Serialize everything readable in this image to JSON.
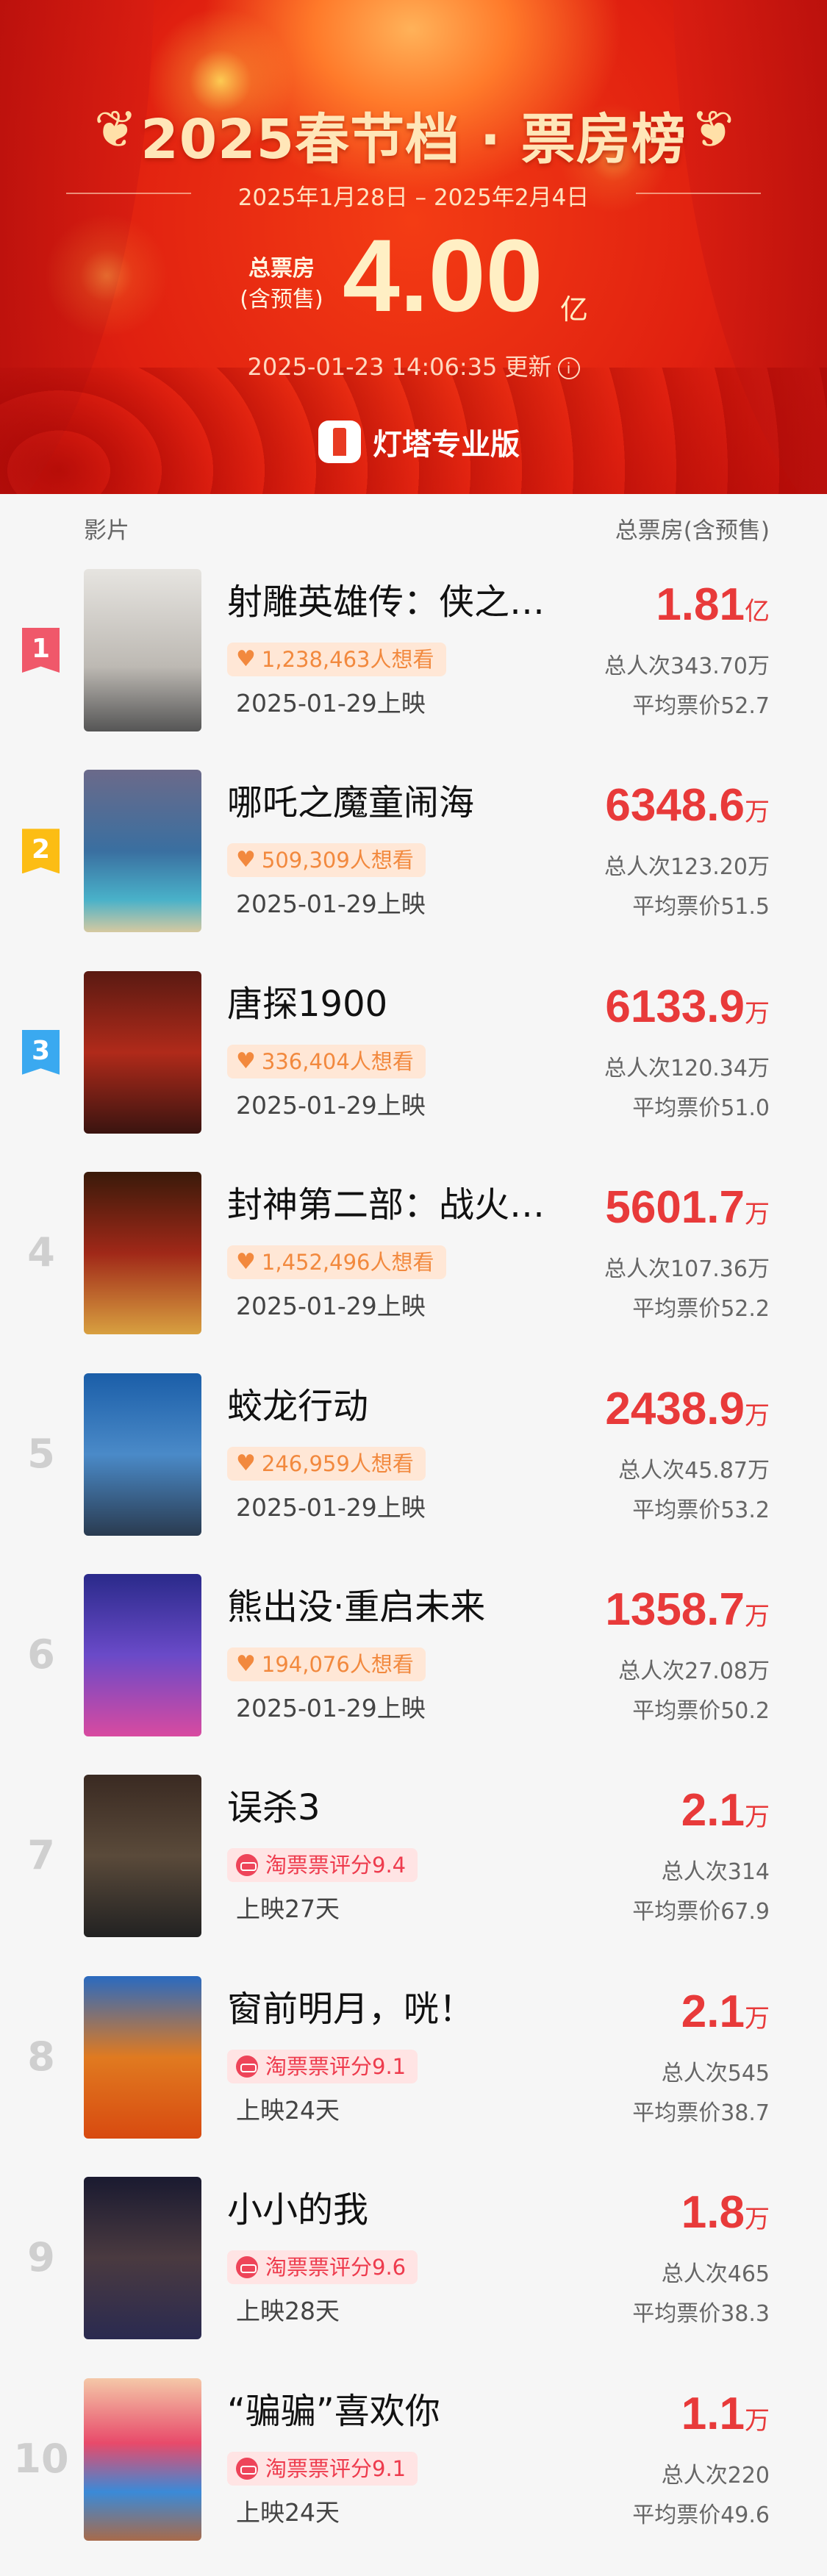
{
  "header": {
    "title": "2025春节档 · 票房榜",
    "date_range": "2025年1月28日 – 2025年2月4日",
    "total_label_line1": "总票房",
    "total_label_line2": "(含预售)",
    "total_value": "4.00",
    "total_unit": "亿",
    "update_text": "2025-01-23 14:06:35 更新",
    "info_icon": "info-circle-icon",
    "brand": "灯塔专业版"
  },
  "columns": {
    "film": "影片",
    "box_office": "总票房(含预售)"
  },
  "colors": {
    "accent": "#e83a3a",
    "rank1": "#f0586a",
    "rank2": "#fcbd14",
    "rank3": "#3aa9f0",
    "want_text": "#f2893e",
    "score_text": "#ee3b4d"
  },
  "movies": [
    {
      "rank": "1",
      "title": "射雕英雄传：侠之大者",
      "tag_type": "want",
      "tag": "1,238,463人想看",
      "sub": "2025-01-29上映",
      "bo": "1.81",
      "unit": "亿",
      "viewers": "总人次343.70万",
      "avg_price": "平均票价52.7"
    },
    {
      "rank": "2",
      "title": "哪吒之魔童闹海",
      "tag_type": "want",
      "tag": "509,309人想看",
      "sub": "2025-01-29上映",
      "bo": "6348.6",
      "unit": "万",
      "viewers": "总人次123.20万",
      "avg_price": "平均票价51.5"
    },
    {
      "rank": "3",
      "title": "唐探1900",
      "tag_type": "want",
      "tag": "336,404人想看",
      "sub": "2025-01-29上映",
      "bo": "6133.9",
      "unit": "万",
      "viewers": "总人次120.34万",
      "avg_price": "平均票价51.0"
    },
    {
      "rank": "4",
      "title": "封神第二部：战火西岐",
      "tag_type": "want",
      "tag": "1,452,496人想看",
      "sub": "2025-01-29上映",
      "bo": "5601.7",
      "unit": "万",
      "viewers": "总人次107.36万",
      "avg_price": "平均票价52.2"
    },
    {
      "rank": "5",
      "title": "蛟龙行动",
      "tag_type": "want",
      "tag": "246,959人想看",
      "sub": "2025-01-29上映",
      "bo": "2438.9",
      "unit": "万",
      "viewers": "总人次45.87万",
      "avg_price": "平均票价53.2"
    },
    {
      "rank": "6",
      "title": "熊出没·重启未来",
      "tag_type": "want",
      "tag": "194,076人想看",
      "sub": "2025-01-29上映",
      "bo": "1358.7",
      "unit": "万",
      "viewers": "总人次27.08万",
      "avg_price": "平均票价50.2"
    },
    {
      "rank": "7",
      "title": "误杀3",
      "tag_type": "score",
      "tag": "淘票票评分9.4",
      "sub": "上映27天",
      "bo": "2.1",
      "unit": "万",
      "viewers": "总人次314",
      "avg_price": "平均票价67.9"
    },
    {
      "rank": "8",
      "title": "窗前明月，咣！",
      "tag_type": "score",
      "tag": "淘票票评分9.1",
      "sub": "上映24天",
      "bo": "2.1",
      "unit": "万",
      "viewers": "总人次545",
      "avg_price": "平均票价38.7"
    },
    {
      "rank": "9",
      "title": "小小的我",
      "tag_type": "score",
      "tag": "淘票票评分9.6",
      "sub": "上映28天",
      "bo": "1.8",
      "unit": "万",
      "viewers": "总人次465",
      "avg_price": "平均票价38.3"
    },
    {
      "rank": "10",
      "title": "“骗骗”喜欢你",
      "tag_type": "score",
      "tag": "淘票票评分9.1",
      "sub": "上映24天",
      "bo": "1.1",
      "unit": "万",
      "viewers": "总人次220",
      "avg_price": "平均票价49.6"
    }
  ]
}
